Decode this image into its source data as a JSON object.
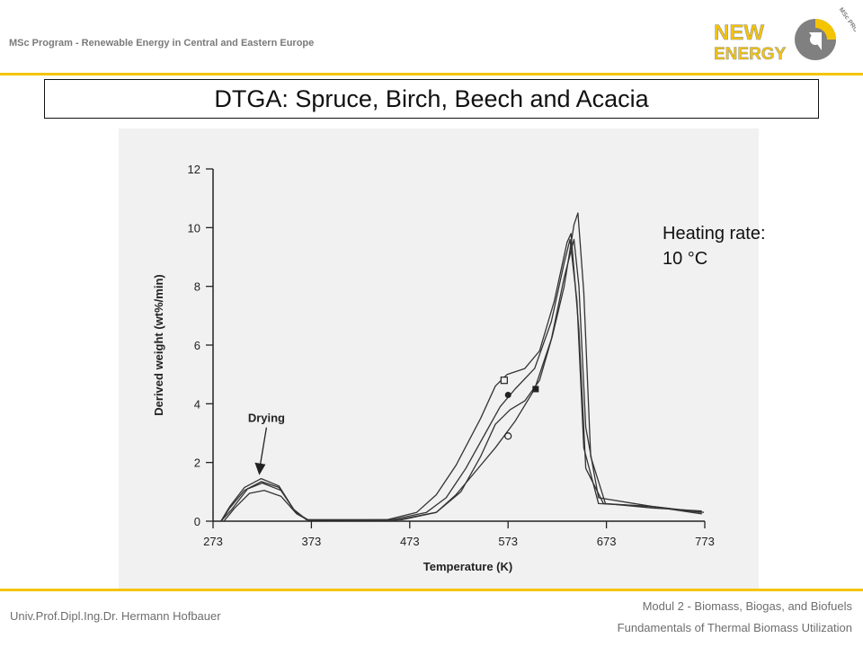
{
  "header": {
    "program": "MSc Program - Renewable Energy in Central and Eastern Europe",
    "logo": {
      "line1": "NEW",
      "line2": "ENERGY",
      "arc_text": "MSc PROGRAM"
    }
  },
  "slide": {
    "title": "DTGA: Spruce, Birch, Beech and Acacia",
    "note_line1": "Heating rate:",
    "note_line2": "10 °C"
  },
  "footer": {
    "author": "Univ.Prof.Dipl.Ing.Dr. Hermann Hofbauer",
    "modul": "Modul 2 - Biomass, Biogas, and Biofuels",
    "course": "Fundamentals of Thermal Biomass Utilization"
  },
  "colors": {
    "accent": "#f5c400",
    "logo_gray": "#808080",
    "plot_background": "#f1f1f1"
  },
  "chart_data": {
    "type": "line",
    "xlabel": "Temperature (K)",
    "ylabel": "Derived weight (wt%/min)",
    "xlim": [
      273,
      773
    ],
    "ylim": [
      0,
      12
    ],
    "xticks": [
      273,
      373,
      473,
      573,
      673,
      773
    ],
    "yticks": [
      0,
      2,
      4,
      6,
      8,
      10,
      12
    ],
    "annotation": {
      "text": "Drying",
      "arrow_to": [
        320,
        1.6
      ]
    },
    "series": [
      {
        "marker": "open-square",
        "marker_at": [
          569,
          4.8
        ],
        "points": [
          [
            281,
            0
          ],
          [
            290,
            0.5
          ],
          [
            305,
            1.15
          ],
          [
            322,
            1.45
          ],
          [
            340,
            1.2
          ],
          [
            355,
            0.4
          ],
          [
            368,
            0.05
          ],
          [
            450,
            0.05
          ],
          [
            480,
            0.3
          ],
          [
            500,
            0.9
          ],
          [
            520,
            1.9
          ],
          [
            545,
            3.5
          ],
          [
            560,
            4.6
          ],
          [
            572,
            5.0
          ],
          [
            590,
            5.2
          ],
          [
            605,
            5.8
          ],
          [
            620,
            7.5
          ],
          [
            633,
            9.5
          ],
          [
            637,
            9.8
          ],
          [
            645,
            6.5
          ],
          [
            652,
            1.8
          ],
          [
            670,
            0.6
          ],
          [
            720,
            0.5
          ],
          [
            770,
            0.3
          ]
        ]
      },
      {
        "marker": "filled-circle",
        "marker_at": [
          573,
          4.3
        ],
        "points": [
          [
            281,
            0
          ],
          [
            290,
            0.45
          ],
          [
            305,
            1.05
          ],
          [
            322,
            1.35
          ],
          [
            340,
            1.15
          ],
          [
            355,
            0.4
          ],
          [
            368,
            0.05
          ],
          [
            455,
            0.05
          ],
          [
            490,
            0.3
          ],
          [
            510,
            0.8
          ],
          [
            530,
            1.8
          ],
          [
            550,
            3.0
          ],
          [
            565,
            3.9
          ],
          [
            580,
            4.5
          ],
          [
            600,
            5.2
          ],
          [
            617,
            6.8
          ],
          [
            630,
            8.8
          ],
          [
            636,
            9.6
          ],
          [
            643,
            7.5
          ],
          [
            650,
            2.5
          ],
          [
            665,
            0.6
          ],
          [
            720,
            0.5
          ],
          [
            770,
            0.25
          ]
        ]
      },
      {
        "marker": "open-circle",
        "marker_at": [
          573,
          2.9
        ],
        "points": [
          [
            284,
            0
          ],
          [
            295,
            0.45
          ],
          [
            310,
            0.95
          ],
          [
            325,
            1.05
          ],
          [
            342,
            0.85
          ],
          [
            358,
            0.25
          ],
          [
            370,
            0.03
          ],
          [
            465,
            0.05
          ],
          [
            500,
            0.3
          ],
          [
            520,
            0.9
          ],
          [
            540,
            1.7
          ],
          [
            560,
            2.5
          ],
          [
            580,
            3.4
          ],
          [
            600,
            4.5
          ],
          [
            617,
            6.2
          ],
          [
            630,
            8.3
          ],
          [
            640,
            9.6
          ],
          [
            645,
            8.0
          ],
          [
            652,
            3.2
          ],
          [
            665,
            0.8
          ],
          [
            720,
            0.5
          ],
          [
            772,
            0.3
          ]
        ]
      },
      {
        "marker": "filled-square",
        "marker_at": [
          601,
          4.5
        ],
        "points": [
          [
            281,
            0
          ],
          [
            292,
            0.4
          ],
          [
            308,
            1.1
          ],
          [
            323,
            1.3
          ],
          [
            342,
            1.05
          ],
          [
            357,
            0.3
          ],
          [
            370,
            0.04
          ],
          [
            460,
            0.04
          ],
          [
            500,
            0.3
          ],
          [
            525,
            1.0
          ],
          [
            545,
            2.2
          ],
          [
            560,
            3.3
          ],
          [
            575,
            3.8
          ],
          [
            590,
            4.1
          ],
          [
            605,
            4.8
          ],
          [
            618,
            6.3
          ],
          [
            630,
            8.0
          ],
          [
            640,
            10.1
          ],
          [
            644,
            10.5
          ],
          [
            650,
            7.8
          ],
          [
            657,
            2.2
          ],
          [
            672,
            0.6
          ],
          [
            720,
            0.45
          ],
          [
            770,
            0.35
          ]
        ]
      }
    ]
  }
}
